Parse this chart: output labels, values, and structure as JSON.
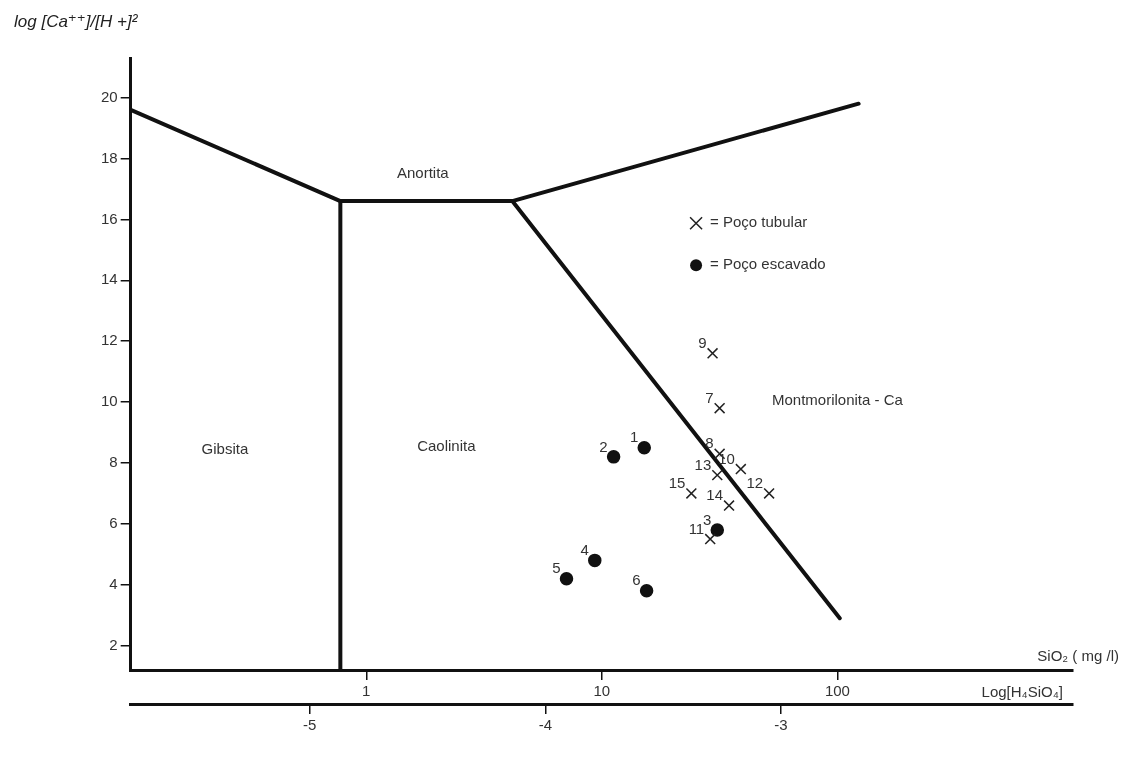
{
  "chart_data": {
    "type": "scatter",
    "xlabel": "Log[H₄SiO₄]",
    "x2label": "SiO₂ ( mg /l)",
    "ylabel": "log [Ca⁺⁺]/[H +]²",
    "xlim": [
      -5.76,
      -1.76
    ],
    "xticks": [
      -5,
      -4,
      -3
    ],
    "x2lim": [
      0.1,
      1000
    ],
    "x2ticks": [
      1,
      10,
      100
    ],
    "log": "x2",
    "ylim": [
      1.2,
      21.3
    ],
    "yticks": [
      2,
      4,
      6,
      8,
      10,
      12,
      14,
      16,
      18,
      20
    ],
    "grid": false,
    "legend": "top right",
    "series": [
      {
        "name": "= Poço tubular",
        "type": "scatter",
        "marker": "cross",
        "color": "#222222",
        "x": [
          -3.26,
          -3.26,
          -3.29,
          -3.17,
          -3.3,
          -3.05,
          -3.27,
          -3.22,
          -3.38
        ],
        "values": [
          9.8,
          8.3,
          11.6,
          7.8,
          5.5,
          7.0,
          7.6,
          6.6,
          7.0
        ]
      },
      {
        "name": "= Poço escavado",
        "type": "scatter",
        "marker": "circle",
        "color": "#111111",
        "x": [
          -3.58,
          -3.71,
          -3.27,
          -3.79,
          -3.91,
          -3.57
        ],
        "values": [
          8.5,
          8.2,
          5.8,
          4.8,
          4.2,
          3.8
        ]
      },
      {
        "type": "line",
        "color": "#111111",
        "x": [
          -5.76,
          -4.87,
          -4.14,
          -2.67
        ],
        "values": [
          19.6,
          16.6,
          16.6,
          19.8
        ]
      },
      {
        "type": "line",
        "color": "#111111",
        "x": [
          -4.14,
          -2.75
        ],
        "values": [
          16.6,
          2.9
        ]
      },
      {
        "type": "line",
        "color": "#111111",
        "x": [
          -4.87,
          -4.87
        ],
        "values": [
          16.6,
          1.2
        ]
      }
    ],
    "annotations": [
      "Gibsita",
      "Caolinita",
      "Anortita",
      "Montmorilonita - Ca",
      {
        "text": "7",
        "x": -3.26,
        "y": 9.8
      },
      {
        "text": "8",
        "x": -3.26,
        "y": 8.3
      },
      {
        "text": "9",
        "x": -3.29,
        "y": 11.6
      },
      {
        "text": "10",
        "x": -3.17,
        "y": 7.8
      },
      {
        "text": "11",
        "x": -3.3,
        "y": 5.5
      },
      {
        "text": "12",
        "x": -3.05,
        "y": 7.0
      },
      {
        "text": "13",
        "x": -3.27,
        "y": 7.6
      },
      {
        "text": "14",
        "x": -3.22,
        "y": 6.6
      },
      {
        "text": "15",
        "x": -3.38,
        "y": 7.0
      },
      {
        "text": "1",
        "x": -3.58,
        "y": 8.5
      },
      {
        "text": "2",
        "x": -3.71,
        "y": 8.2
      },
      {
        "text": "3",
        "x": -3.27,
        "y": 5.8
      },
      {
        "text": "4",
        "x": -3.79,
        "y": 4.8
      },
      {
        "text": "5",
        "x": -3.91,
        "y": 4.2
      },
      {
        "text": "6",
        "x": -3.57,
        "y": 3.8
      }
    ]
  }
}
